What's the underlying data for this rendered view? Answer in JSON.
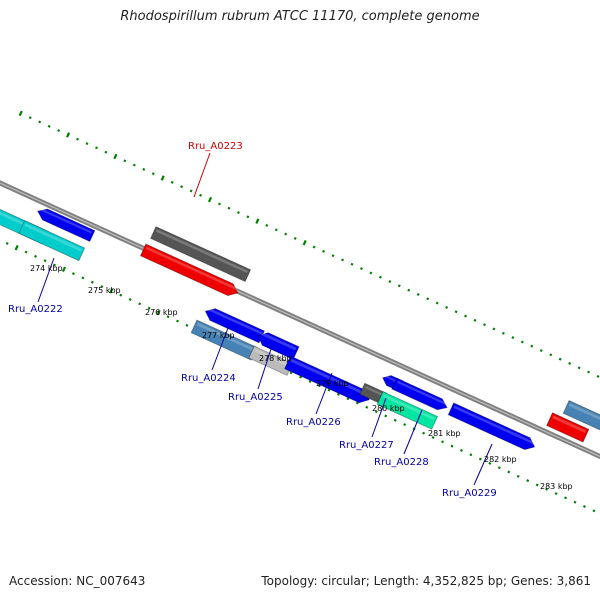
{
  "title": "Rhodospirillum rubrum ATCC 11170, complete genome",
  "footer": {
    "accession": "Accession: NC_007643",
    "stats": "Topology: circular; Length: 4,352,825 bp; Genes: 3,861"
  },
  "colors": {
    "backbone": "#808080",
    "tick": "#008000",
    "label_forward": "#cc0000",
    "label_reverse": "#0000aa",
    "scale_text": "#000000"
  },
  "scale_labels": [
    {
      "text": "274 kbp"
    },
    {
      "text": "275 kbp"
    },
    {
      "text": "276 kbp"
    },
    {
      "text": "277 kbp"
    },
    {
      "text": "278 kbp"
    },
    {
      "text": "279 kbp"
    },
    {
      "text": "280 kbp"
    },
    {
      "text": "281 kbp"
    },
    {
      "text": "282 kbp"
    },
    {
      "text": "283 kbp"
    }
  ],
  "gene_labels": [
    {
      "text": "Rru_A0223",
      "strand": "forward"
    },
    {
      "text": "Rru_A0222",
      "strand": "reverse"
    },
    {
      "text": "Rru_A0224",
      "strand": "reverse"
    },
    {
      "text": "Rru_A0225",
      "strand": "reverse"
    },
    {
      "text": "Rru_A0226",
      "strand": "reverse"
    },
    {
      "text": "Rru_A0227",
      "strand": "reverse"
    },
    {
      "text": "Rru_A0228",
      "strand": "reverse"
    },
    {
      "text": "Rru_A0229",
      "strand": "reverse"
    }
  ],
  "features": [
    {
      "color": "#0000ee",
      "shape": "arrow-left"
    },
    {
      "color": "#00cccc",
      "shape": "box"
    },
    {
      "color": "#00cccc",
      "shape": "box"
    },
    {
      "color": "#555555",
      "shape": "box"
    },
    {
      "color": "#ee0000",
      "shape": "arrow-right"
    },
    {
      "color": "#0000ee",
      "shape": "arrow-left"
    },
    {
      "color": "#4682b4",
      "shape": "box"
    },
    {
      "color": "#0000ee",
      "shape": "arrow-left"
    },
    {
      "color": "#bbbbbb",
      "shape": "box"
    },
    {
      "color": "#0000ee",
      "shape": "arrow-right"
    },
    {
      "color": "#0000ee",
      "shape": "arrow-left"
    },
    {
      "color": "#555555",
      "shape": "box"
    },
    {
      "color": "#0000ee",
      "shape": "arrow-right"
    },
    {
      "color": "#00e5a0",
      "shape": "box"
    },
    {
      "color": "#0000ee",
      "shape": "arrow-right"
    },
    {
      "color": "#4682b4",
      "shape": "box"
    },
    {
      "color": "#ee0000",
      "shape": "box"
    }
  ]
}
